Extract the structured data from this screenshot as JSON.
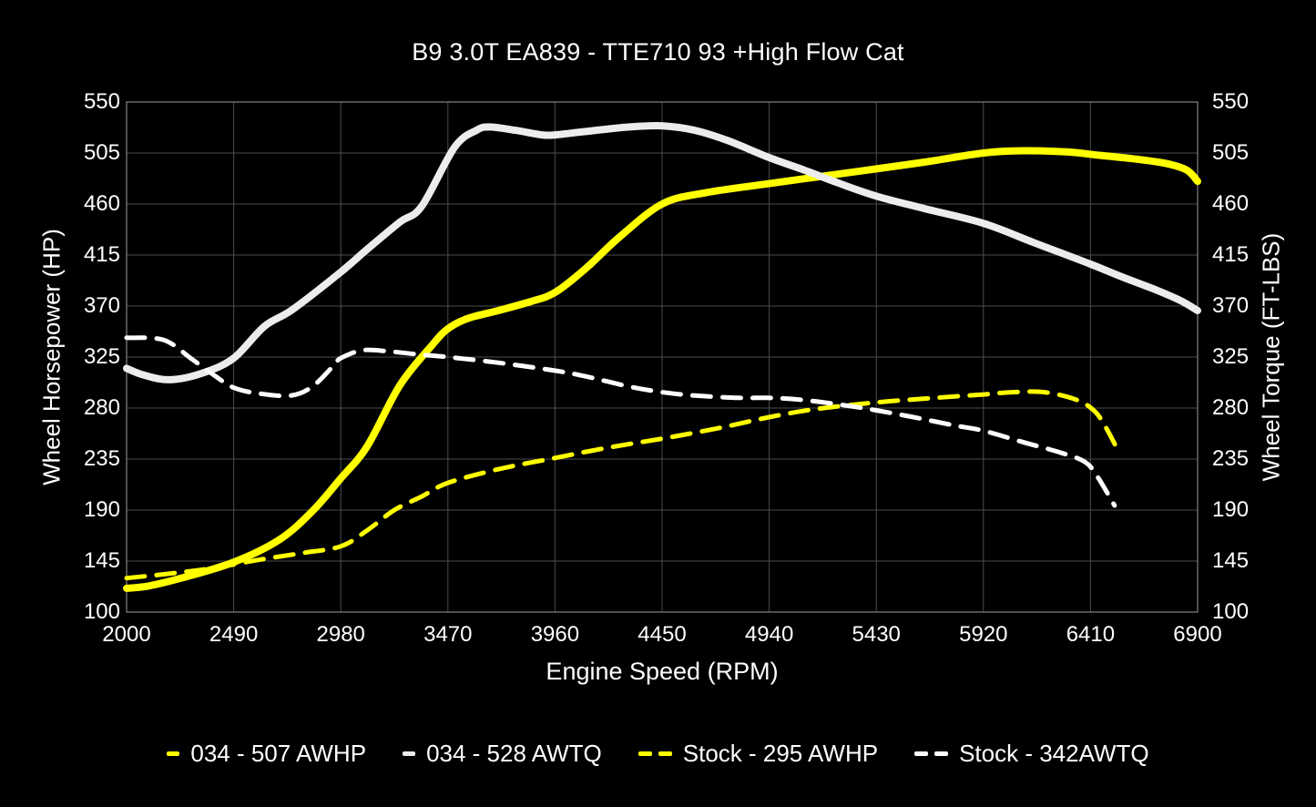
{
  "colors": {
    "background": "#000000",
    "text": "#ffffff",
    "grid": "#4d4d4d",
    "frame": "#7a7a7a",
    "accent_yellow": "#ffff00",
    "curve_white": "#ececec",
    "dashed_white": "#ffffff"
  },
  "chart_data": {
    "type": "line",
    "title": "B9 3.0T EA839 - TTE710 93 +High Flow Cat",
    "xlabel": "Engine Speed (RPM)",
    "ylabel_left": "Wheel Horsepower (HP)",
    "ylabel_right": "Wheel Torque (FT-LBS)",
    "xlim": [
      2000,
      6900
    ],
    "ylim": [
      100,
      550
    ],
    "x_ticks": [
      2000,
      2490,
      2980,
      3470,
      3960,
      4450,
      4940,
      5430,
      5920,
      6410,
      6900
    ],
    "y_ticks": [
      100,
      145,
      190,
      235,
      280,
      325,
      370,
      415,
      460,
      505,
      550
    ],
    "grid": true,
    "legend_position": "bottom",
    "series": [
      {
        "name": "034 - 507 AWHP",
        "color": "#ffff00",
        "style": "solid",
        "width": 8,
        "points": [
          [
            2000,
            121
          ],
          [
            2100,
            123
          ],
          [
            2250,
            130
          ],
          [
            2490,
            144
          ],
          [
            2700,
            164
          ],
          [
            2850,
            189
          ],
          [
            2980,
            218
          ],
          [
            3100,
            246
          ],
          [
            3250,
            300
          ],
          [
            3400,
            336
          ],
          [
            3470,
            350
          ],
          [
            3560,
            359
          ],
          [
            3700,
            366
          ],
          [
            3850,
            374
          ],
          [
            3960,
            382
          ],
          [
            4100,
            403
          ],
          [
            4250,
            430
          ],
          [
            4450,
            460
          ],
          [
            4650,
            470
          ],
          [
            4940,
            478
          ],
          [
            5200,
            485
          ],
          [
            5430,
            491
          ],
          [
            5650,
            497
          ],
          [
            5920,
            505
          ],
          [
            6100,
            507
          ],
          [
            6300,
            506
          ],
          [
            6450,
            503
          ],
          [
            6600,
            500
          ],
          [
            6750,
            496
          ],
          [
            6850,
            490
          ],
          [
            6900,
            480
          ]
        ]
      },
      {
        "name": "034 - 528 AWTQ",
        "color": "#ececec",
        "style": "solid",
        "width": 8,
        "points": [
          [
            2000,
            315
          ],
          [
            2080,
            309
          ],
          [
            2200,
            305
          ],
          [
            2350,
            311
          ],
          [
            2490,
            324
          ],
          [
            2630,
            352
          ],
          [
            2760,
            367
          ],
          [
            2980,
            400
          ],
          [
            3100,
            420
          ],
          [
            3250,
            444
          ],
          [
            3350,
            458
          ],
          [
            3500,
            510
          ],
          [
            3600,
            525
          ],
          [
            3660,
            528
          ],
          [
            3780,
            525
          ],
          [
            3900,
            521
          ],
          [
            3960,
            521
          ],
          [
            4100,
            524
          ],
          [
            4300,
            528
          ],
          [
            4450,
            529
          ],
          [
            4600,
            525
          ],
          [
            4750,
            516
          ],
          [
            4940,
            501
          ],
          [
            5100,
            490
          ],
          [
            5250,
            479
          ],
          [
            5430,
            467
          ],
          [
            5650,
            456
          ],
          [
            5920,
            443
          ],
          [
            6150,
            426
          ],
          [
            6410,
            407
          ],
          [
            6550,
            396
          ],
          [
            6700,
            385
          ],
          [
            6820,
            375
          ],
          [
            6900,
            366
          ]
        ]
      },
      {
        "name": "Stock - 295 AWHP",
        "color": "#ffff00",
        "style": "dashed",
        "width": 5,
        "points": [
          [
            2000,
            130
          ],
          [
            2200,
            134
          ],
          [
            2400,
            139
          ],
          [
            2600,
            146
          ],
          [
            2800,
            152
          ],
          [
            2980,
            158
          ],
          [
            3100,
            172
          ],
          [
            3225,
            190
          ],
          [
            3350,
            202
          ],
          [
            3470,
            214
          ],
          [
            3700,
            226
          ],
          [
            3960,
            236
          ],
          [
            4200,
            245
          ],
          [
            4450,
            253
          ],
          [
            4700,
            262
          ],
          [
            4940,
            272
          ],
          [
            5150,
            279
          ],
          [
            5430,
            285
          ],
          [
            5700,
            289
          ],
          [
            5920,
            292
          ],
          [
            6050,
            294
          ],
          [
            6200,
            294
          ],
          [
            6350,
            287
          ],
          [
            6430,
            277
          ],
          [
            6480,
            263
          ],
          [
            6540,
            241
          ]
        ]
      },
      {
        "name": "Stock - 342AWTQ",
        "color": "#ffffff",
        "style": "dashed",
        "width": 5,
        "points": [
          [
            2000,
            342
          ],
          [
            2170,
            340
          ],
          [
            2300,
            323
          ],
          [
            2400,
            309
          ],
          [
            2490,
            298
          ],
          [
            2600,
            293
          ],
          [
            2750,
            291
          ],
          [
            2850,
            299
          ],
          [
            2950,
            318
          ],
          [
            2980,
            324
          ],
          [
            3080,
            331
          ],
          [
            3200,
            330
          ],
          [
            3350,
            327
          ],
          [
            3470,
            325
          ],
          [
            3700,
            320
          ],
          [
            3960,
            313
          ],
          [
            4100,
            308
          ],
          [
            4300,
            299
          ],
          [
            4450,
            294
          ],
          [
            4600,
            291
          ],
          [
            4800,
            289
          ],
          [
            4940,
            289
          ],
          [
            5100,
            287
          ],
          [
            5300,
            282
          ],
          [
            5430,
            278
          ],
          [
            5600,
            272
          ],
          [
            5780,
            265
          ],
          [
            5920,
            260
          ],
          [
            6100,
            250
          ],
          [
            6250,
            242
          ],
          [
            6380,
            233
          ],
          [
            6440,
            220
          ],
          [
            6520,
            194
          ]
        ]
      }
    ],
    "legend": [
      {
        "label": "034 - 507 AWHP",
        "marker_color": "#ffff00",
        "marker_style": "solid"
      },
      {
        "label": "034 - 528 AWTQ",
        "marker_color": "#ececec",
        "marker_style": "solid"
      },
      {
        "label": "Stock - 295 AWHP",
        "marker_color": "#ffff00",
        "marker_style": "dashed"
      },
      {
        "label": "Stock - 342AWTQ",
        "marker_color": "#ffffff",
        "marker_style": "dashed"
      }
    ]
  }
}
